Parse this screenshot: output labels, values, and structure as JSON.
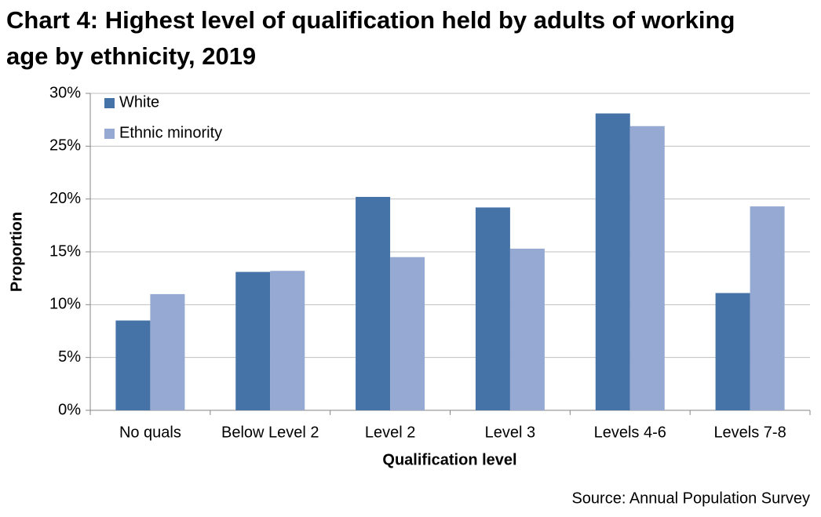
{
  "chart_data": {
    "type": "bar",
    "title": "Chart 4: Highest level of qualification held by adults of working age by ethnicity, 2019",
    "x_label": "Qualification level",
    "y_label": "Proportion",
    "source": "Source: Annual Population Survey",
    "categories": [
      "No quals",
      "Below Level 2",
      "Level 2",
      "Level 3",
      "Levels 4-6",
      "Levels 7-8"
    ],
    "series": [
      {
        "name": "White",
        "color": "#4572a7",
        "values": [
          8.5,
          13.1,
          20.2,
          19.2,
          28.1,
          11.1
        ]
      },
      {
        "name": "Ethnic minority",
        "color": "#95a9d2",
        "values": [
          11.0,
          13.2,
          14.5,
          15.3,
          26.9,
          19.3
        ]
      }
    ],
    "ylim": [
      0,
      30
    ],
    "yticks": [
      {
        "value": 0,
        "label": "0%"
      },
      {
        "value": 5,
        "label": "5%"
      },
      {
        "value": 10,
        "label": "10%"
      },
      {
        "value": 15,
        "label": "15%"
      },
      {
        "value": 20,
        "label": "20%"
      },
      {
        "value": 25,
        "label": "25%"
      },
      {
        "value": 30,
        "label": "30%"
      }
    ],
    "grid": true,
    "legend": "top-left"
  }
}
